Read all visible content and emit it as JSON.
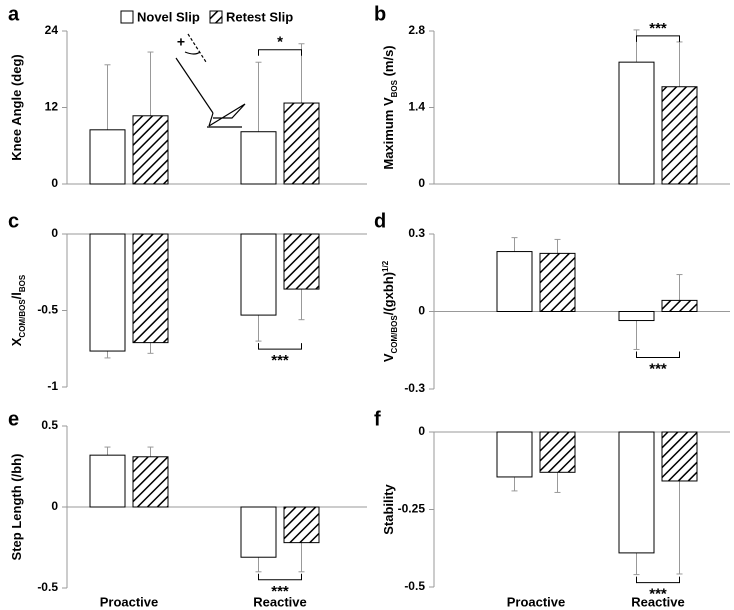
{
  "chart_data": [
    {
      "type": "bar",
      "label": "a",
      "ylabel": [
        {
          "text": "Knee Angle (deg)"
        }
      ],
      "ylim": [
        0,
        24
      ],
      "yticks": [
        0,
        12,
        24
      ],
      "series": [
        {
          "name": "Novel Slip",
          "color": "#ffffff",
          "pattern": "none",
          "values": [
            8.5,
            8.2
          ],
          "errors": [
            10.2,
            10.9
          ]
        },
        {
          "name": "Retest Slip",
          "color": "#ffffff",
          "pattern": "hatch",
          "values": [
            10.7,
            12.7
          ],
          "errors": [
            10.0,
            9.3
          ]
        }
      ],
      "sig": "*",
      "annotation": "+"
    },
    {
      "type": "bar",
      "label": "b",
      "ylabel": [
        {
          "text": "Maximum  V"
        },
        {
          "text": "BOS",
          "sub": true
        },
        {
          "text": " (m/s)"
        }
      ],
      "ylim": [
        0,
        2.8
      ],
      "yticks": [
        0,
        1.4,
        2.8
      ],
      "series": [
        {
          "color": "#ffffff",
          "pattern": "none",
          "values": [
            null,
            2.23
          ],
          "errors": [
            null,
            0.59
          ]
        },
        {
          "color": "#ffffff",
          "pattern": "hatch",
          "values": [
            null,
            1.78
          ],
          "errors": [
            null,
            0.82
          ]
        }
      ],
      "sig": "***"
    },
    {
      "type": "bar",
      "label": "c",
      "ylabel": [
        {
          "text": "X"
        },
        {
          "text": "COM/BOS",
          "sub": true
        },
        {
          "text": "/l"
        },
        {
          "text": "BOS",
          "sub": true
        }
      ],
      "ylim": [
        -1,
        0
      ],
      "yticks": [
        0,
        -0.5,
        -1
      ],
      "series": [
        {
          "color": "#ffffff",
          "pattern": "none",
          "values": [
            -0.765,
            -0.53
          ],
          "errors": [
            0.045,
            0.17
          ]
        },
        {
          "color": "#ffffff",
          "pattern": "hatch",
          "values": [
            -0.71,
            -0.36
          ],
          "errors": [
            0.07,
            0.2
          ]
        }
      ],
      "sig": "***"
    },
    {
      "type": "bar",
      "label": "d",
      "ylabel": [
        {
          "text": "V"
        },
        {
          "text": "COM/BOS",
          "sub": true
        },
        {
          "text": "/(gxbh)"
        },
        {
          "text": "1/2",
          "sup": true
        }
      ],
      "ylim": [
        -0.3,
        0.3
      ],
      "yticks": [
        0.3,
        0,
        -0.3
      ],
      "series": [
        {
          "color": "#ffffff",
          "pattern": "none",
          "values": [
            0.232,
            -0.035
          ],
          "errors": [
            0.054,
            0.112
          ]
        },
        {
          "color": "#ffffff",
          "pattern": "hatch",
          "values": [
            0.225,
            0.043
          ],
          "errors": [
            0.054,
            0.1
          ]
        }
      ],
      "sig": "***"
    },
    {
      "type": "bar",
      "label": "e",
      "ylabel": [
        {
          "text": "Step Length (/bh)"
        }
      ],
      "ylim": [
        -0.5,
        0.5
      ],
      "yticks": [
        0.5,
        0,
        -0.5
      ],
      "categories": [
        "Proactive",
        "Reactive"
      ],
      "series": [
        {
          "color": "#ffffff",
          "pattern": "none",
          "values": [
            0.32,
            -0.31
          ],
          "errors": [
            0.05,
            0.09
          ]
        },
        {
          "color": "#ffffff",
          "pattern": "hatch",
          "values": [
            0.31,
            -0.22
          ],
          "errors": [
            0.06,
            0.18
          ]
        }
      ],
      "sig": "***"
    },
    {
      "type": "bar",
      "label": "f",
      "ylabel": [
        {
          "text": "Stability"
        }
      ],
      "ylim": [
        -0.5,
        0
      ],
      "yticks": [
        0,
        -0.25,
        -0.5
      ],
      "categories": [
        "Proactive",
        "Reactive"
      ],
      "series": [
        {
          "color": "#ffffff",
          "pattern": "none",
          "values": [
            -0.145,
            -0.39
          ],
          "errors": [
            0.045,
            0.07
          ]
        },
        {
          "color": "#ffffff",
          "pattern": "hatch",
          "values": [
            -0.13,
            -0.158
          ],
          "errors": [
            0.065,
            0.3
          ]
        }
      ],
      "sig": "***"
    }
  ]
}
